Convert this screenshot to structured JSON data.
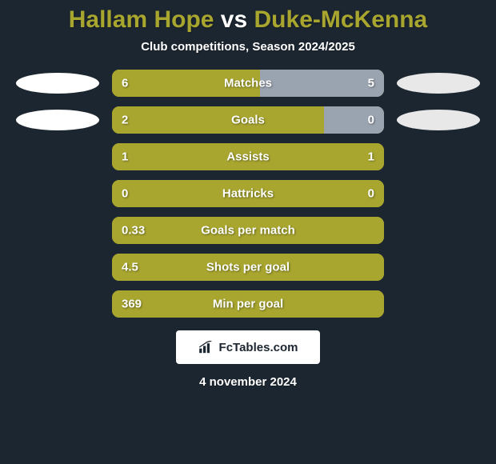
{
  "background_color": "#1c2630",
  "title": {
    "left": "Hallam Hope",
    "vs": " vs ",
    "right": "Duke-McKenna",
    "vs_color": "#ffffff",
    "name_color": "#a8a62f"
  },
  "subtitle": "Club competitions, Season 2024/2025",
  "subtitle_color": "#ffffff",
  "player_left_color": "#ffffff",
  "player_right_color": "#e8e8e8",
  "bar_colors": {
    "left_fill": "#a8a62f",
    "right_fill": "#9aa3b0",
    "track": "#a8a62f"
  },
  "text_color_on_bar": "#ffffff",
  "rows": [
    {
      "metric": "Matches",
      "left_value": "6",
      "right_value": "5",
      "left_pct": 54.5,
      "right_pct": 45.5,
      "show_ovals": true
    },
    {
      "metric": "Goals",
      "left_value": "2",
      "right_value": "0",
      "left_pct": 78.0,
      "right_pct": 22.0,
      "show_ovals": true
    },
    {
      "metric": "Assists",
      "left_value": "1",
      "right_value": "1",
      "left_pct": 100,
      "right_pct": 0,
      "show_ovals": false
    },
    {
      "metric": "Hattricks",
      "left_value": "0",
      "right_value": "0",
      "left_pct": 100,
      "right_pct": 0,
      "show_ovals": false
    },
    {
      "metric": "Goals per match",
      "left_value": "0.33",
      "right_value": "",
      "left_pct": 100,
      "right_pct": 0,
      "show_ovals": false
    },
    {
      "metric": "Shots per goal",
      "left_value": "4.5",
      "right_value": "",
      "left_pct": 100,
      "right_pct": 0,
      "show_ovals": false
    },
    {
      "metric": "Min per goal",
      "left_value": "369",
      "right_value": "",
      "left_pct": 100,
      "right_pct": 0,
      "show_ovals": false
    }
  ],
  "attribution": {
    "text": "FcTables.com",
    "bg_color": "#ffffff",
    "text_color": "#1c2630"
  },
  "date": "4 november 2024",
  "date_color": "#ffffff"
}
